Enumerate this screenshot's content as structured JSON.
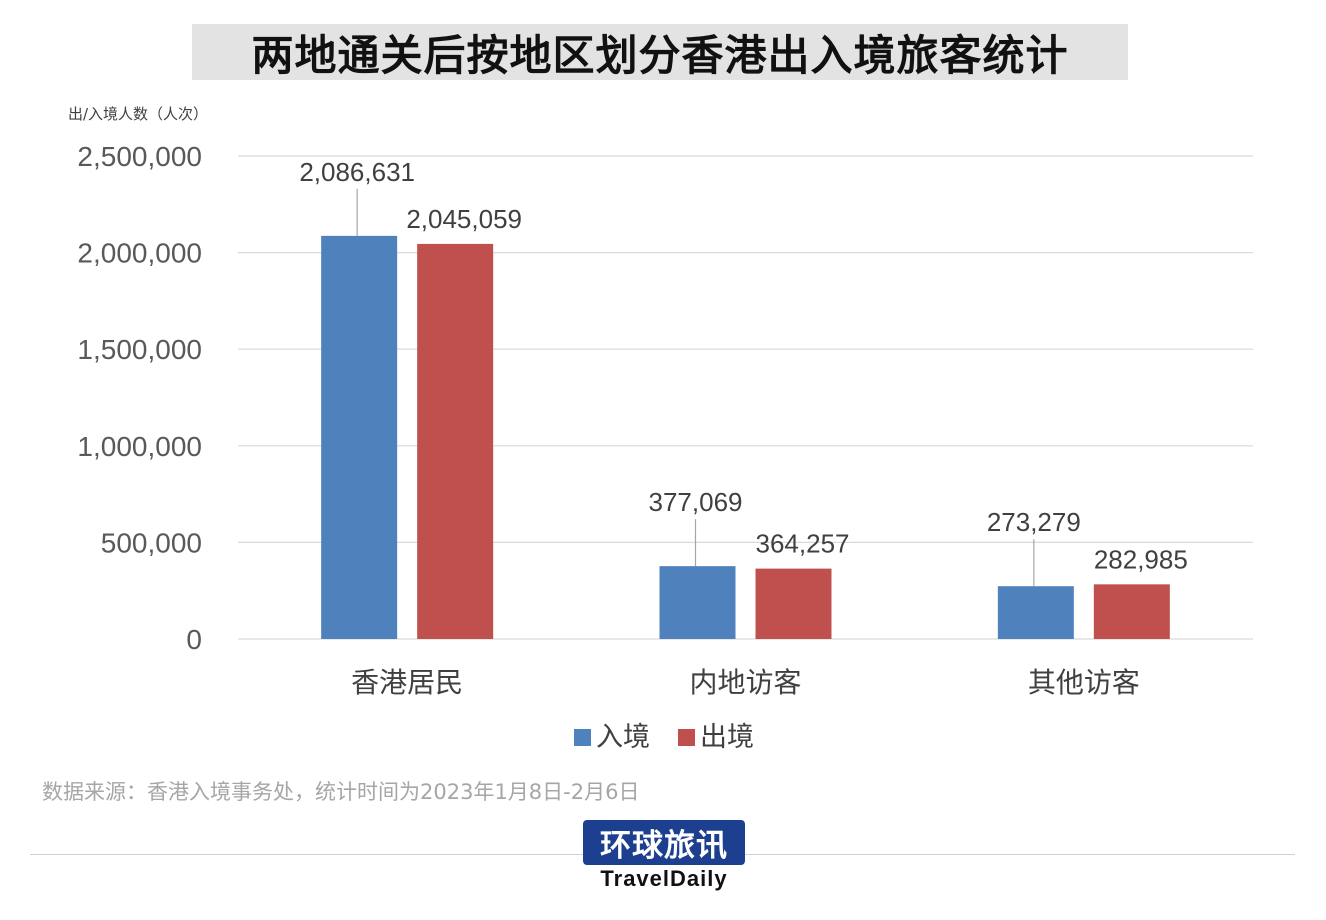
{
  "title": "两地通关后按地区划分香港出入境旅客统计",
  "source_note": "数据来源：香港入境事务处，统计时间为2023年1月8日-2月6日",
  "logo": {
    "text": "环球旅讯",
    "subtext": "TravelDaily"
  },
  "colors": {
    "entry": "#4f81bd",
    "exit": "#c0504d",
    "grid": "#d9d9d9",
    "label": "#404040"
  },
  "chart_data": {
    "type": "bar",
    "title": "两地通关后按地区划分香港出入境旅客统计",
    "ylabel": "出/入境人数（人次）",
    "xlabel": "",
    "ylim": [
      0,
      2500000
    ],
    "yticks": [
      0,
      500000,
      1000000,
      1500000,
      2000000,
      2500000
    ],
    "ytick_labels": [
      "0",
      "500,000",
      "1,000,000",
      "1,500,000",
      "2,000,000",
      "2,500,000"
    ],
    "categories": [
      "香港居民",
      "内地访客",
      "其他访客"
    ],
    "series": [
      {
        "name": "入境",
        "values": [
          2086631,
          377069,
          273279
        ],
        "labels": [
          "2,086,631",
          "377,069",
          "273,279"
        ]
      },
      {
        "name": "出境",
        "values": [
          2045059,
          364257,
          282985
        ],
        "labels": [
          "2,045,059",
          "364,257",
          "282,985"
        ]
      }
    ],
    "grid": true,
    "legend": "bottom"
  }
}
